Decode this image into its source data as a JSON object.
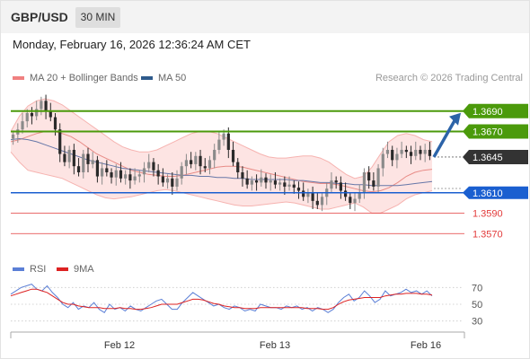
{
  "header": {
    "symbol": "GBP/USD",
    "timeframe": "30 MIN",
    "datetime": "Monday, February 16, 2026 12:36:24 AM CET"
  },
  "legend": {
    "bollinger": {
      "label": "MA 20 + Bollinger Bands",
      "color": "#f08080"
    },
    "ma50": {
      "label": "MA 50",
      "color": "#2f5b8c"
    }
  },
  "credit": "Research © 2026 Trading Central",
  "rsi_legend": {
    "rsi": {
      "label": "RSI",
      "color": "#5b7fd6"
    },
    "ma9": {
      "label": "9MA",
      "color": "#dd2222"
    }
  },
  "colors": {
    "resistance": "#4b9a0b",
    "support": "#1a5fd0",
    "minor": "#e23b3b",
    "current": "#333333",
    "arrow": "#2c63a8",
    "band_fill": "#fde4e3",
    "candle_up": "#8b8b8b",
    "candle_down": "#2a2a2a"
  },
  "chart_data": [
    {
      "type": "candlestick",
      "title": "GBP/USD 30 MIN",
      "x_ticks": [
        "Feb 12",
        "Feb 13",
        "Feb 16"
      ],
      "ylim": [
        1.355,
        1.371
      ],
      "levels": [
        {
          "value": 1.369,
          "label": "1.3690",
          "kind": "resistance"
        },
        {
          "value": 1.367,
          "label": "1.3670",
          "kind": "resistance"
        },
        {
          "value": 1.3645,
          "label": "1.3645",
          "kind": "current"
        },
        {
          "value": 1.361,
          "label": "1.3610",
          "kind": "support"
        },
        {
          "value": 1.359,
          "label": "1.3590",
          "kind": "minor"
        },
        {
          "value": 1.357,
          "label": "1.3570",
          "kind": "minor"
        }
      ],
      "closes": [
        1.3667,
        1.3672,
        1.368,
        1.3688,
        1.3685,
        1.3692,
        1.37,
        1.369,
        1.3684,
        1.3672,
        1.3648,
        1.364,
        1.3652,
        1.3636,
        1.363,
        1.3648,
        1.3638,
        1.3642,
        1.3626,
        1.3634,
        1.363,
        1.3625,
        1.3632,
        1.3624,
        1.3628,
        1.3622,
        1.3626,
        1.3628,
        1.3634,
        1.364,
        1.3632,
        1.3626,
        1.362,
        1.3624,
        1.3616,
        1.3624,
        1.3636,
        1.3642,
        1.3638,
        1.3646,
        1.3636,
        1.3634,
        1.3642,
        1.3652,
        1.3662,
        1.3668,
        1.3652,
        1.364,
        1.363,
        1.3624,
        1.3618,
        1.3622,
        1.362,
        1.3625,
        1.362,
        1.3622,
        1.3618,
        1.362,
        1.3616,
        1.3618,
        1.3615,
        1.3612,
        1.3606,
        1.361,
        1.3602,
        1.3598,
        1.3606,
        1.3614,
        1.3622,
        1.362,
        1.3612,
        1.3606,
        1.36,
        1.3604,
        1.361,
        1.363,
        1.3622,
        1.3616,
        1.3634,
        1.3648,
        1.3652,
        1.3642,
        1.3648,
        1.3652,
        1.365,
        1.3646,
        1.3652,
        1.3648,
        1.3652,
        1.3646
      ],
      "series": [
        {
          "name": "MA 20",
          "values": [
            1.366,
            1.3662,
            1.3665,
            1.3668,
            1.367,
            1.367,
            1.3668,
            1.3665,
            1.366,
            1.3654,
            1.3648,
            1.3644,
            1.364,
            1.3636,
            1.3632,
            1.363,
            1.3628,
            1.3627,
            1.3626,
            1.3626,
            1.3627,
            1.3629,
            1.3631,
            1.3633,
            1.3635,
            1.3636,
            1.3636,
            1.3635,
            1.3633,
            1.3631,
            1.3629,
            1.3627,
            1.3625,
            1.3623,
            1.3621,
            1.362,
            1.3619,
            1.3619,
            1.3618,
            1.3616,
            1.3614,
            1.3612,
            1.3611,
            1.3612,
            1.3615,
            1.362,
            1.3626,
            1.363,
            1.3632,
            1.3633
          ]
        },
        {
          "name": "MA 50",
          "values": [
            1.3662,
            1.3663,
            1.3662,
            1.366,
            1.3657,
            1.3654,
            1.3651,
            1.3648,
            1.3645,
            1.3642,
            1.364,
            1.3638,
            1.3636,
            1.3634,
            1.3633,
            1.3632,
            1.3631,
            1.363,
            1.3629,
            1.3628,
            1.3627,
            1.3627,
            1.3626,
            1.3626,
            1.3625,
            1.3625,
            1.3624,
            1.3624,
            1.3623,
            1.3623,
            1.3623,
            1.3623,
            1.3623,
            1.3622,
            1.3622,
            1.3621,
            1.362,
            1.362,
            1.3619,
            1.3619,
            1.3618,
            1.3618,
            1.3617,
            1.3617,
            1.3617,
            1.3617,
            1.3618,
            1.3619,
            1.362,
            1.3621
          ]
        },
        {
          "name": "Bollinger Upper",
          "values": [
            1.367,
            1.3685,
            1.3695,
            1.37,
            1.3702,
            1.37,
            1.3696,
            1.369,
            1.3684,
            1.3678,
            1.3672,
            1.3666,
            1.366,
            1.3655,
            1.3652,
            1.365,
            1.365,
            1.3652,
            1.3656,
            1.366,
            1.3664,
            1.3668,
            1.367,
            1.367,
            1.3668,
            1.3664,
            1.366,
            1.3656,
            1.3652,
            1.3648,
            1.3645,
            1.3644,
            1.3644,
            1.3645,
            1.3646,
            1.3646,
            1.3644,
            1.364,
            1.3634,
            1.3628,
            1.3624,
            1.3626,
            1.3635,
            1.3648,
            1.366,
            1.3666,
            1.3668,
            1.3666,
            1.3662,
            1.366
          ]
        },
        {
          "name": "Bollinger Lower",
          "values": [
            1.365,
            1.364,
            1.3632,
            1.363,
            1.3628,
            1.3626,
            1.3624,
            1.362,
            1.3616,
            1.3612,
            1.3608,
            1.3605,
            1.3604,
            1.3605,
            1.3606,
            1.3608,
            1.361,
            1.3612,
            1.3613,
            1.3612,
            1.361,
            1.3608,
            1.3606,
            1.3604,
            1.3602,
            1.36,
            1.3598,
            1.3597,
            1.3597,
            1.3598,
            1.3599,
            1.36,
            1.3601,
            1.36,
            1.3598,
            1.3596,
            1.3594,
            1.3594,
            1.3596,
            1.3598,
            1.36,
            1.3596,
            1.359,
            1.359,
            1.3594,
            1.3598,
            1.3604,
            1.3608,
            1.361,
            1.3612
          ]
        }
      ],
      "forecast_arrow": {
        "from": 1.3645,
        "to": 1.369
      }
    },
    {
      "type": "line",
      "title": "RSI",
      "ylim": [
        20,
        80
      ],
      "y_ticks": [
        70,
        50,
        30
      ],
      "series": [
        {
          "name": "RSI",
          "values": [
            62,
            66,
            70,
            72,
            74,
            68,
            66,
            72,
            64,
            58,
            50,
            46,
            52,
            44,
            48,
            46,
            52,
            44,
            40,
            50,
            44,
            46,
            42,
            48,
            44,
            42,
            46,
            50,
            54,
            56,
            50,
            44,
            44,
            52,
            58,
            64,
            60,
            56,
            52,
            48,
            50,
            46,
            44,
            48,
            46,
            42,
            44,
            42,
            50,
            48,
            46,
            46,
            44,
            48,
            46,
            48,
            44,
            46,
            42,
            46,
            44,
            40,
            44,
            52,
            58,
            62,
            54,
            58,
            66,
            60,
            52,
            56,
            66,
            60,
            62,
            64,
            68,
            64,
            66,
            62,
            66,
            60
          ]
        },
        {
          "name": "9MA",
          "values": [
            60,
            62,
            64,
            66,
            68,
            68,
            66,
            64,
            60,
            56,
            52,
            50,
            50,
            48,
            47,
            46,
            46,
            46,
            45,
            45,
            45,
            46,
            45,
            45,
            44,
            44,
            45,
            46,
            48,
            50,
            50,
            50,
            50,
            52,
            54,
            56,
            56,
            55,
            53,
            51,
            50,
            48,
            47,
            46,
            46,
            45,
            45,
            45,
            46,
            46,
            46,
            46,
            46,
            46,
            46,
            46,
            46,
            45,
            45,
            45,
            44,
            44,
            46,
            50,
            53,
            55,
            56,
            57,
            58,
            58,
            58,
            58,
            60,
            61,
            62,
            62,
            63,
            63,
            63,
            62,
            62,
            61
          ]
        }
      ]
    }
  ]
}
